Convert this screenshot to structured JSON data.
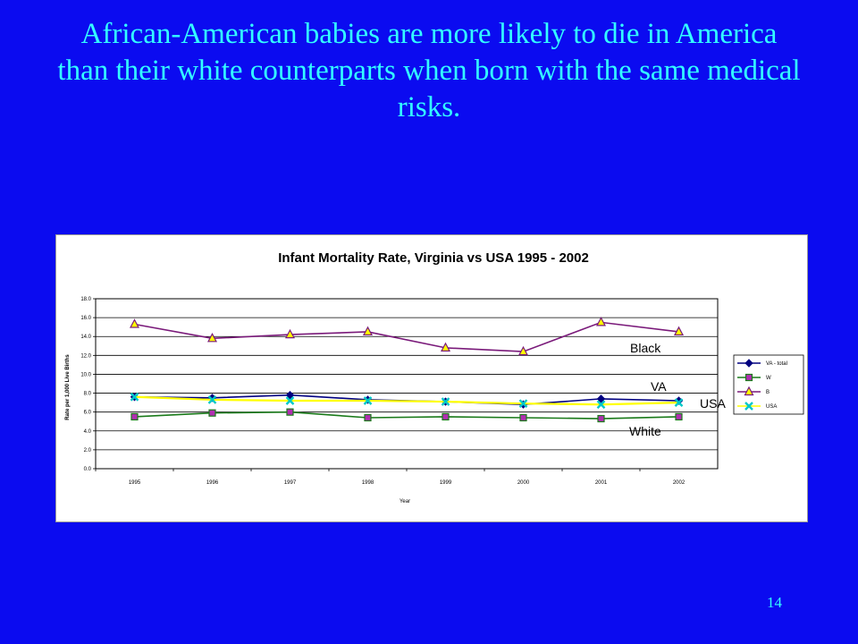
{
  "slide": {
    "title": "African-American babies are more likely to die in America than their white counterparts when born with the same medical risks.",
    "page_number": "14"
  },
  "colors": {
    "background": "#0b0bf0",
    "title_text": "#33ffff",
    "va_total": "#000080",
    "white": "#1a7a1a",
    "black": "#7a1a7a",
    "usa": "#ffff00"
  },
  "chart_data": {
    "type": "line",
    "title": "Infant Mortality Rate, Virginia vs USA 1995 - 2002",
    "xlabel": "Year",
    "ylabel": "Rate per 1,000 Live Births",
    "ylim": [
      0,
      18
    ],
    "yticks": [
      "0.0",
      "2.0",
      "4.0",
      "6.0",
      "8.0",
      "10.0",
      "12.0",
      "14.0",
      "16.0",
      "18.0"
    ],
    "categories": [
      "1995",
      "1996",
      "1997",
      "1998",
      "1999",
      "2000",
      "2001",
      "2002"
    ],
    "grid": true,
    "legend_position": "right",
    "series": [
      {
        "name": "VA - total",
        "color": "#000080",
        "marker": "diamond",
        "values": [
          7.6,
          7.5,
          7.8,
          7.3,
          7.1,
          6.8,
          7.4,
          7.2
        ]
      },
      {
        "name": "W",
        "color": "#1a7a1a",
        "marker": "square",
        "values": [
          5.5,
          5.9,
          6.0,
          5.4,
          5.5,
          5.4,
          5.3,
          5.5
        ]
      },
      {
        "name": "B",
        "color": "#7a1a7a",
        "marker": "triangle",
        "values": [
          15.3,
          13.8,
          14.2,
          14.5,
          12.8,
          12.4,
          15.5,
          14.5
        ]
      },
      {
        "name": "USA",
        "color": "#ffff00",
        "marker": "x",
        "values": [
          7.6,
          7.3,
          7.2,
          7.2,
          7.1,
          6.9,
          6.8,
          7.0
        ]
      }
    ],
    "annotations": [
      "Black",
      "VA",
      "USA",
      "White"
    ]
  }
}
